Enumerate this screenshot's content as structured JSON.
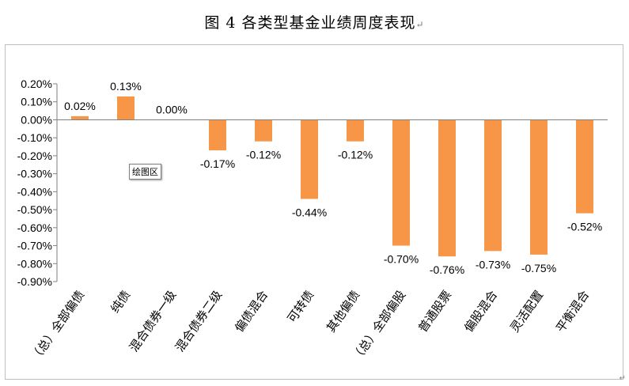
{
  "title": "图 4  各类型基金业绩周度表现",
  "return_mark": "↵",
  "tooltip": "绘图区",
  "corner_mark": "↵",
  "colors": {
    "bar": "#F79646",
    "axis": "#808080",
    "text": "#000000"
  },
  "chart_data": {
    "type": "bar",
    "categories": [
      "（总）全部偏债",
      "纯债",
      "混合债券一级",
      "混合债券二级",
      "偏债混合",
      "可转债",
      "其他偏债",
      "（总）全部偏股",
      "普通股票",
      "偏股混合",
      "灵活配置",
      "平衡混合"
    ],
    "values": [
      0.02,
      0.13,
      0.0,
      -0.17,
      -0.12,
      -0.44,
      -0.12,
      -0.7,
      -0.76,
      -0.73,
      -0.75,
      -0.52
    ],
    "data_labels": [
      "0.02%",
      "0.13%",
      "0.00%",
      "-0.17%",
      "-0.12%",
      "-0.44%",
      "-0.12%",
      "-0.70%",
      "-0.76%",
      "-0.73%",
      "-0.75%",
      "-0.52%"
    ],
    "y_ticks": [
      0.2,
      0.1,
      0.0,
      -0.1,
      -0.2,
      -0.3,
      -0.4,
      -0.5,
      -0.6,
      -0.7,
      -0.8,
      -0.9
    ],
    "y_tick_labels": [
      "0.20%",
      "0.10%",
      "0.00%",
      "-0.10%",
      "-0.20%",
      "-0.30%",
      "-0.40%",
      "-0.50%",
      "-0.60%",
      "-0.70%",
      "-0.80%",
      "-0.90%"
    ],
    "ylim": [
      -0.9,
      0.2
    ],
    "xlabel": "",
    "ylabel": "",
    "grid": false,
    "legend": "none"
  }
}
